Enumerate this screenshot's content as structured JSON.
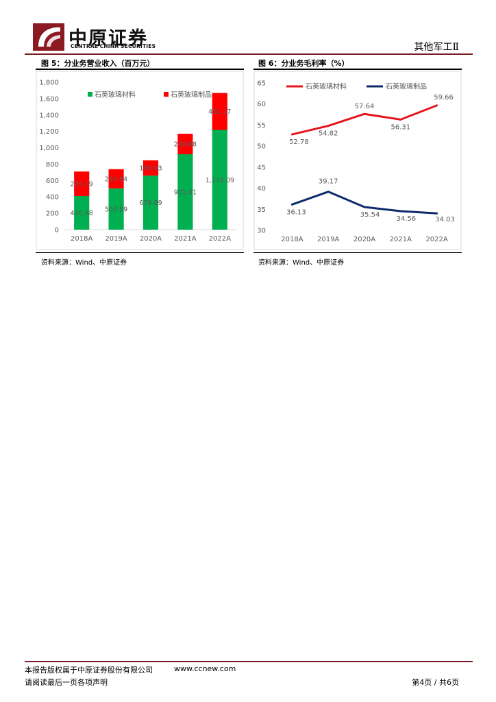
{
  "header": {
    "brand_cn": "中原证券",
    "brand_en": "CENTRAL CHINA SECURITIES",
    "sector": "其他军工Ⅱ",
    "accent_color": "#7b1c24"
  },
  "figure5": {
    "title": "图 5：分业务营业收入（百万元）",
    "source": "资料来源：Wind、中原证券"
  },
  "figure6": {
    "title": "图 6：分业务毛利率（%）",
    "source": "资料来源：Wind、中原证券"
  },
  "chart_data": [
    {
      "type": "bar",
      "stacked": true,
      "categories": [
        "2018A",
        "2019A",
        "2020A",
        "2021A",
        "2022A"
      ],
      "series": [
        {
          "name": "石英玻璃材料",
          "color": "#00b050",
          "values": [
            410.48,
            503.89,
            659.89,
            921.01,
            1218.09
          ],
          "labels": [
            "410.48",
            "503.89",
            "659.89",
            "921.01",
            "1,218.09"
          ]
        },
        {
          "name": "石英玻璃制品",
          "color": "#ff0000",
          "values": [
            299.29,
            234.64,
            186.93,
            249.88,
            451.17
          ],
          "labels": [
            "299.29",
            "234.64",
            "186.93",
            "249.88",
            "451.17"
          ]
        }
      ],
      "ylim": [
        0,
        1800
      ],
      "yticks": [
        0,
        200,
        400,
        600,
        800,
        1000,
        1200,
        1400,
        1600,
        1800
      ],
      "ytick_labels": [
        "0",
        "200",
        "400",
        "600",
        "800",
        "1,000",
        "1,200",
        "1,400",
        "1,600",
        "1,800"
      ],
      "legend": "top",
      "title": "",
      "xlabel": "",
      "ylabel": ""
    },
    {
      "type": "line",
      "categories": [
        "2018A",
        "2019A",
        "2020A",
        "2021A",
        "2022A"
      ],
      "series": [
        {
          "name": "石英玻璃材料",
          "color": "#e8141e",
          "values": [
            52.78,
            54.82,
            57.64,
            56.31,
            59.66
          ],
          "labels": [
            "52.78",
            "54.82",
            "57.64",
            "56.31",
            "59.66"
          ]
        },
        {
          "name": "石英玻璃制品",
          "color": "#0d2b6b",
          "values": [
            36.13,
            39.17,
            35.54,
            34.56,
            34.03
          ],
          "labels": [
            "36.13",
            "39.17",
            "35.54",
            "34.56",
            "34.03"
          ]
        }
      ],
      "ylim": [
        30,
        65
      ],
      "yticks": [
        30,
        35,
        40,
        45,
        50,
        55,
        60,
        65
      ],
      "ytick_labels": [
        "30",
        "35",
        "40",
        "45",
        "50",
        "55",
        "60",
        "65"
      ],
      "legend": "top",
      "title": "",
      "xlabel": "",
      "ylabel": ""
    }
  ],
  "footer": {
    "copyright": "本报告版权属于中原证券股份有限公司",
    "website": "www.ccnew.com",
    "disclaimer": "请阅读最后一页各项声明",
    "page": "第4页 / 共6页"
  }
}
